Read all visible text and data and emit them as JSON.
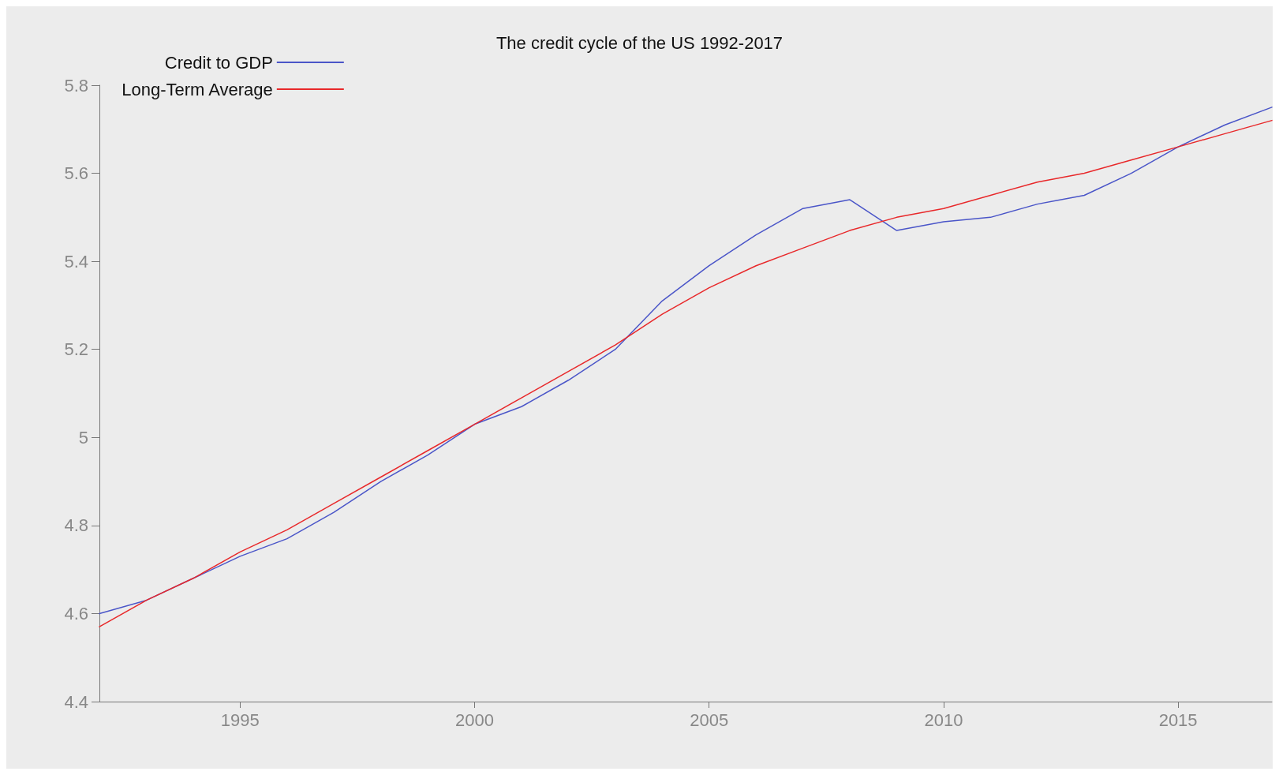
{
  "chart_data": {
    "type": "line",
    "title": "The credit cycle of the US 1992-2017",
    "x": [
      1992,
      1993,
      1994,
      1995,
      1996,
      1997,
      1998,
      1999,
      2000,
      2001,
      2002,
      2003,
      2004,
      2005,
      2006,
      2007,
      2008,
      2009,
      2010,
      2011,
      2012,
      2013,
      2014,
      2015,
      2016,
      2017
    ],
    "series": [
      {
        "name": "Credit to GDP",
        "color": "#4a55c8",
        "values": [
          4.6,
          4.63,
          4.68,
          4.73,
          4.77,
          4.83,
          4.9,
          4.96,
          5.03,
          5.07,
          5.13,
          5.2,
          5.31,
          5.39,
          5.46,
          5.52,
          5.54,
          5.47,
          5.49,
          5.5,
          5.53,
          5.55,
          5.6,
          5.66,
          5.71,
          5.75
        ]
      },
      {
        "name": "Long-Term Average",
        "color": "#e8282a",
        "values": [
          4.57,
          4.63,
          4.68,
          4.74,
          4.79,
          4.85,
          4.91,
          4.97,
          5.03,
          5.09,
          5.15,
          5.21,
          5.28,
          5.34,
          5.39,
          5.43,
          5.47,
          5.5,
          5.52,
          5.55,
          5.58,
          5.6,
          5.63,
          5.66,
          5.69,
          5.72
        ]
      }
    ],
    "xlim": [
      1992,
      2017
    ],
    "xticks": [
      1995,
      2000,
      2005,
      2010,
      2015
    ],
    "ylim": [
      4.4,
      5.8
    ],
    "yticks": [
      4.4,
      4.6,
      4.8,
      5,
      5.2,
      5.4,
      5.6,
      5.8
    ],
    "grid": false,
    "legend": "top left",
    "marker": "none",
    "line_style": "solid"
  }
}
